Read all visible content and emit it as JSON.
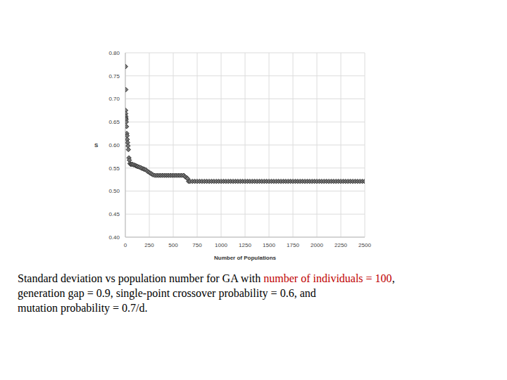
{
  "chart_data": {
    "type": "scatter",
    "xlabel": "Number of Populations",
    "ylabel": "S",
    "x": [
      2,
      5,
      3,
      4,
      6,
      7,
      8,
      10,
      12,
      15,
      18,
      20,
      24,
      28,
      32,
      38,
      42,
      48,
      55,
      65,
      75,
      85,
      100,
      110,
      120,
      130,
      145,
      160,
      175,
      190,
      200,
      215,
      230,
      245,
      260,
      275,
      290,
      310,
      330,
      350,
      370,
      390,
      410,
      430,
      450,
      470,
      490,
      510,
      530,
      550,
      570,
      590,
      610,
      625,
      640,
      650,
      660,
      675,
      700,
      725,
      750,
      775,
      800,
      825,
      850,
      875,
      900,
      925,
      950,
      975,
      1000,
      1025,
      1050,
      1075,
      1100,
      1125,
      1150,
      1175,
      1200,
      1225,
      1250,
      1275,
      1300,
      1325,
      1350,
      1375,
      1400,
      1425,
      1450,
      1475,
      1500,
      1525,
      1550,
      1575,
      1600,
      1625,
      1650,
      1675,
      1700,
      1725,
      1750,
      1775,
      1800,
      1825,
      1850,
      1875,
      1900,
      1925,
      1950,
      1975,
      2000,
      2025,
      2050,
      2075,
      2100,
      2125,
      2150,
      2175,
      2200,
      2225,
      2250,
      2275,
      2300,
      2325,
      2350,
      2375,
      2400,
      2425,
      2450,
      2475,
      2500
    ],
    "values": [
      0.77,
      0.72,
      0.675,
      0.668,
      0.662,
      0.658,
      0.655,
      0.65,
      0.64,
      0.625,
      0.62,
      0.612,
      0.605,
      0.598,
      0.59,
      0.572,
      0.567,
      0.56,
      0.558,
      0.558,
      0.558,
      0.557,
      0.556,
      0.555,
      0.554,
      0.553,
      0.552,
      0.551,
      0.549,
      0.548,
      0.547,
      0.546,
      0.543,
      0.541,
      0.539,
      0.537,
      0.535,
      0.534,
      0.534,
      0.534,
      0.534,
      0.534,
      0.534,
      0.534,
      0.534,
      0.534,
      0.534,
      0.534,
      0.534,
      0.534,
      0.534,
      0.534,
      0.534,
      0.531,
      0.529,
      0.527,
      0.521,
      0.521,
      0.521,
      0.521,
      0.521,
      0.521,
      0.521,
      0.521,
      0.521,
      0.521,
      0.521,
      0.521,
      0.521,
      0.521,
      0.521,
      0.521,
      0.521,
      0.521,
      0.521,
      0.521,
      0.521,
      0.521,
      0.521,
      0.521,
      0.521,
      0.521,
      0.521,
      0.521,
      0.521,
      0.521,
      0.521,
      0.521,
      0.521,
      0.521,
      0.521,
      0.521,
      0.521,
      0.521,
      0.521,
      0.521,
      0.521,
      0.521,
      0.521,
      0.521,
      0.521,
      0.521,
      0.521,
      0.521,
      0.521,
      0.521,
      0.521,
      0.521,
      0.521,
      0.521,
      0.521,
      0.521,
      0.521,
      0.521,
      0.521,
      0.521,
      0.521,
      0.521,
      0.521,
      0.521,
      0.521,
      0.521,
      0.521,
      0.521,
      0.521,
      0.521,
      0.521,
      0.521,
      0.521,
      0.521,
      0.521
    ],
    "color": "#333333",
    "marker": "diamond",
    "xlim": [
      0,
      2500
    ],
    "xticks": [
      0,
      250,
      500,
      750,
      1000,
      1250,
      1500,
      1750,
      2000,
      2250,
      2500
    ],
    "ylim": [
      0.4,
      0.8
    ],
    "yticks": [
      {
        "value": 0.4,
        "label": "0.40"
      },
      {
        "value": 0.45,
        "label": "0.45"
      },
      {
        "value": 0.5,
        "label": "0.50"
      },
      {
        "value": 0.55,
        "label": "0.55"
      },
      {
        "value": 0.6,
        "label": "0.60"
      },
      {
        "value": 0.65,
        "label": "0.65"
      },
      {
        "value": 0.7,
        "label": "0.70"
      },
      {
        "value": 0.75,
        "label": "0.75"
      },
      {
        "value": 0.8,
        "label": "0.80"
      }
    ],
    "grid": true,
    "caption": [
      [
        {
          "text": "Standard deviation vs population number for GA with "
        },
        {
          "text": "number of individuals = 100",
          "color": "#c00000"
        },
        {
          "text": ","
        }
      ],
      [
        {
          "text": "generation gap = 0.9, single-point crossover probability = 0.6, and"
        }
      ],
      [
        {
          "text": "mutation probability = 0.7/d."
        }
      ]
    ]
  }
}
